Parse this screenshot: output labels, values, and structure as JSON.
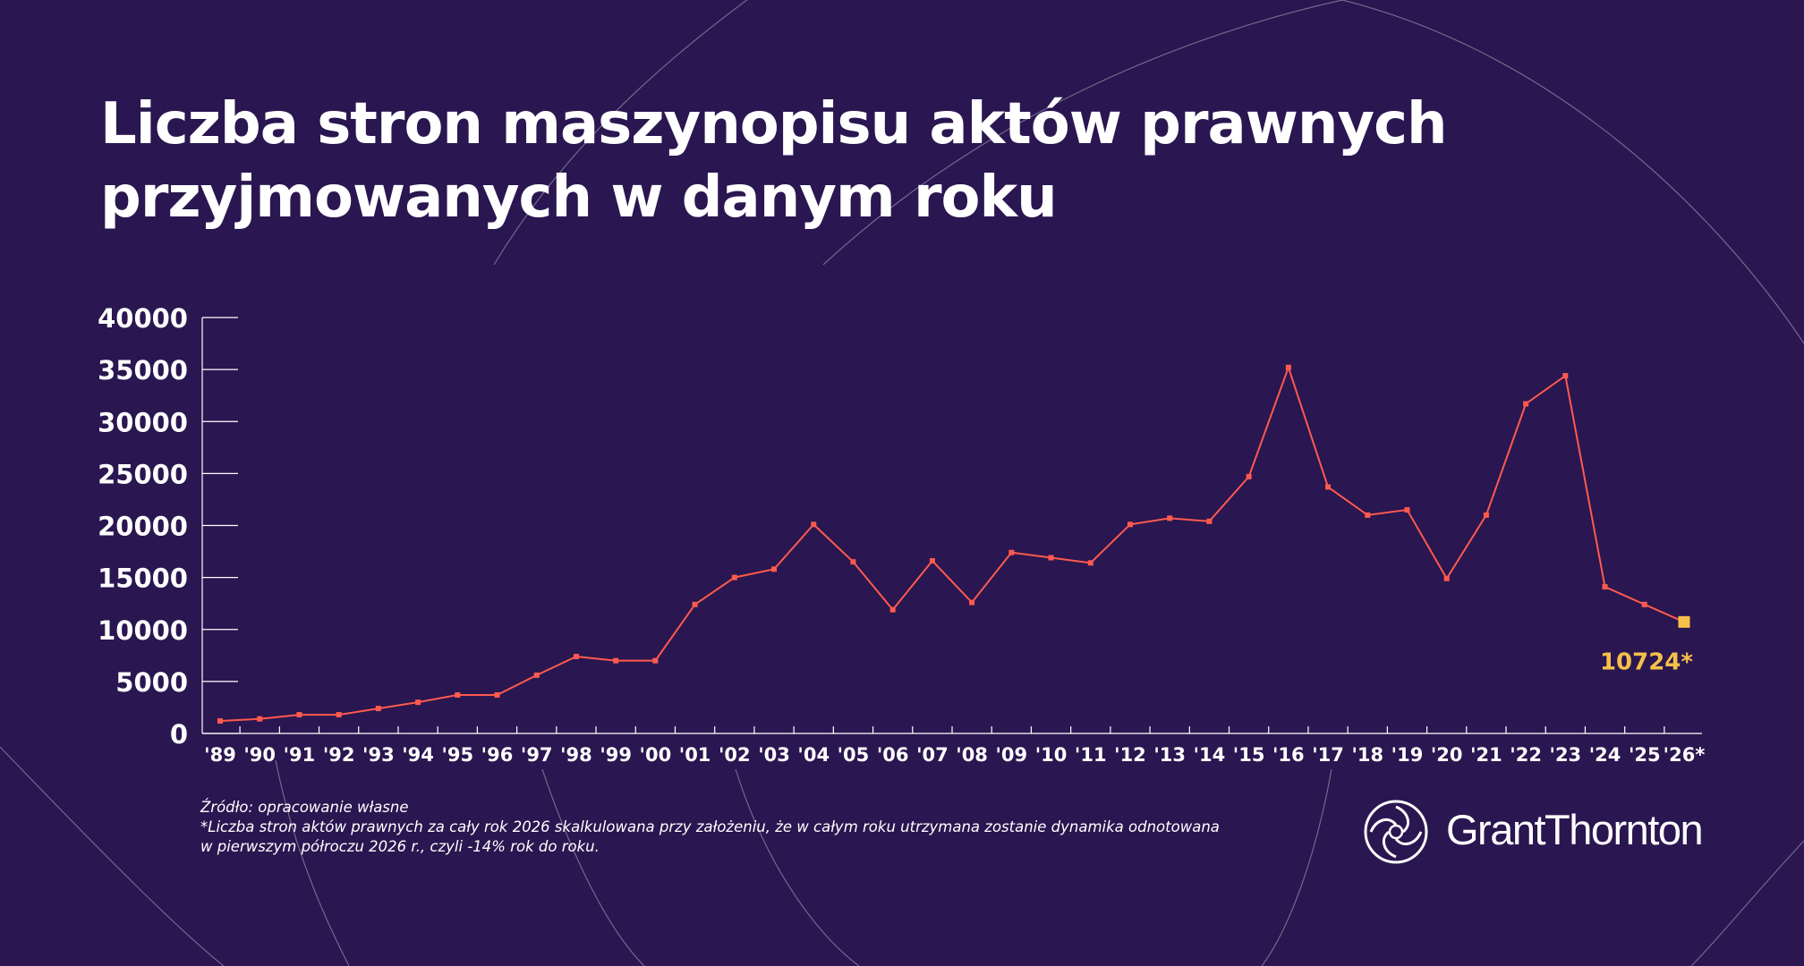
{
  "title": {
    "line1": "Liczba stron maszynopisu aktów prawnych",
    "line2": "przyjmowanych w danym roku"
  },
  "source": {
    "line1": "Źródło: opracowanie własne",
    "line2": "*Liczba stron aktów prawnych za cały rok 2026 skalkulowana przy założeniu, że w całym roku utrzymana zostanie dynamika odnotowana",
    "line3": "w pierwszym półroczu 2026 r., czyli -14% rok do roku."
  },
  "brand": {
    "name": "GrantThornton"
  },
  "colors": {
    "background": "#2a1650",
    "line": "#ff5a4e",
    "highlight": "#f5c04a",
    "text": "#ffffff"
  },
  "chart_data": {
    "type": "line",
    "title": "Liczba stron maszynopisu aktów prawnych przyjmowanych w danym roku",
    "categories": [
      "'89",
      "'90",
      "'91",
      "'92",
      "'93",
      "'94",
      "'95",
      "'96",
      "'97",
      "'98",
      "'99",
      "'00",
      "'01",
      "'02",
      "'03",
      "'04",
      "'05",
      "'06",
      "'07",
      "'08",
      "'09",
      "'10",
      "'11",
      "'12",
      "'13",
      "'14",
      "'15",
      "'16",
      "'17",
      "'18",
      "'19",
      "'20",
      "'21",
      "'22",
      "'23",
      "'24",
      "'25",
      "'26*"
    ],
    "values": [
      1200,
      1400,
      1800,
      1800,
      2400,
      3000,
      3700,
      3700,
      5600,
      7400,
      7000,
      7000,
      12400,
      15000,
      15800,
      20100,
      16500,
      11900,
      16600,
      12600,
      17400,
      16900,
      16400,
      20100,
      20700,
      20400,
      24700,
      35200,
      23700,
      21000,
      21500,
      14900,
      21000,
      31700,
      34400,
      14100,
      12400,
      10724
    ],
    "yticks": [
      0,
      5000,
      10000,
      15000,
      20000,
      25000,
      30000,
      35000,
      40000
    ],
    "ylim": [
      0,
      40000
    ],
    "grid": false,
    "annotation": {
      "category": "'26*",
      "label": "10724*"
    }
  }
}
